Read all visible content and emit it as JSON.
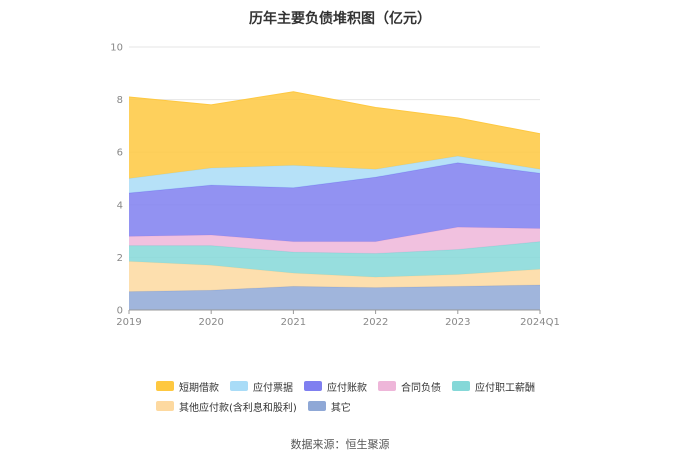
{
  "chart_data": {
    "type": "area",
    "stacked": true,
    "title": "历年主要负债堆积图（亿元）",
    "categories": [
      "2019",
      "2020",
      "2021",
      "2022",
      "2023",
      "2024Q1"
    ],
    "ylim": [
      0,
      10
    ],
    "yticks": [
      0,
      2,
      4,
      6,
      8,
      10
    ],
    "grid": true,
    "legend_position": "bottom",
    "series": [
      {
        "name": "其它",
        "color": "#8fa8d6",
        "values": [
          0.7,
          0.75,
          0.9,
          0.85,
          0.9,
          0.95
        ]
      },
      {
        "name": "其他应付款(含利息和股利)",
        "color": "#fdd9a0",
        "values": [
          1.15,
          0.95,
          0.5,
          0.4,
          0.45,
          0.6
        ]
      },
      {
        "name": "应付职工薪酬",
        "color": "#85d8d8",
        "values": [
          0.6,
          0.75,
          0.8,
          0.9,
          0.95,
          1.05
        ]
      },
      {
        "name": "合同负债",
        "color": "#eeb6d9",
        "values": [
          0.35,
          0.4,
          0.4,
          0.45,
          0.85,
          0.5
        ]
      },
      {
        "name": "应付账款",
        "color": "#7f7ff0",
        "values": [
          1.65,
          1.9,
          2.05,
          2.45,
          2.45,
          2.1
        ]
      },
      {
        "name": "应付票据",
        "color": "#a9dcf7",
        "values": [
          0.55,
          0.65,
          0.85,
          0.3,
          0.25,
          0.15
        ]
      },
      {
        "name": "短期借款",
        "color": "#fec840",
        "values": [
          3.1,
          2.4,
          2.8,
          2.35,
          1.45,
          1.35
        ]
      }
    ]
  },
  "legend": {
    "rows": [
      [
        {
          "label": "短期借款",
          "color": "#fec840"
        },
        {
          "label": "应付票据",
          "color": "#a9dcf7"
        },
        {
          "label": "应付账款",
          "color": "#7f7ff0"
        },
        {
          "label": "合同负债",
          "color": "#eeb6d9"
        },
        {
          "label": "应付职工薪酬",
          "color": "#85d8d8"
        }
      ],
      [
        {
          "label": "其他应付款(含利息和股利)",
          "color": "#fdd9a0"
        },
        {
          "label": "其它",
          "color": "#8fa8d6"
        }
      ]
    ]
  },
  "source": "数据来源：恒生聚源"
}
